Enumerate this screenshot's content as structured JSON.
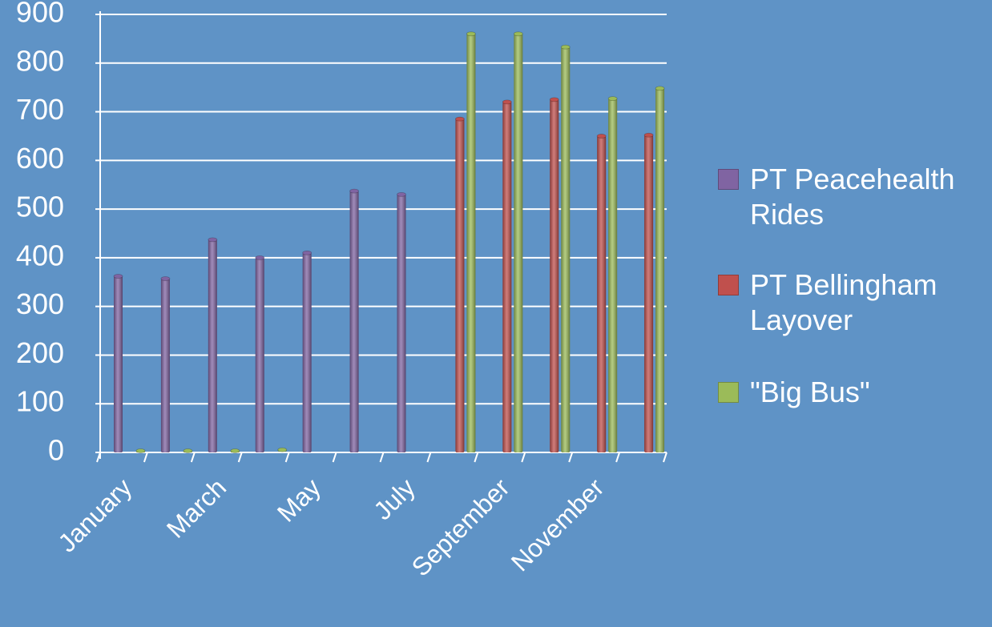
{
  "chart_data": {
    "type": "bar",
    "categories": [
      "January",
      null,
      "March",
      null,
      "May",
      null,
      "July",
      null,
      "September",
      null,
      "November",
      null
    ],
    "series": [
      {
        "name": "PT Peacehealth Rides",
        "color": "#8064a2",
        "values": [
          362,
          357,
          437,
          400,
          410,
          537,
          530,
          null,
          null,
          null,
          null,
          null
        ]
      },
      {
        "name": "PT Bellingham Layover",
        "color": "#c0504d",
        "values": [
          null,
          null,
          null,
          null,
          null,
          null,
          null,
          685,
          720,
          725,
          650,
          652
        ]
      },
      {
        "name": "\"Big Bus\"",
        "color": "#9bbb59",
        "values": [
          0,
          0,
          0,
          2,
          null,
          null,
          null,
          860,
          860,
          833,
          727,
          748
        ]
      }
    ],
    "ylim": [
      0,
      900
    ],
    "yticks": [
      0,
      100,
      200,
      300,
      400,
      500,
      600,
      700,
      800,
      900
    ],
    "grid": true
  }
}
